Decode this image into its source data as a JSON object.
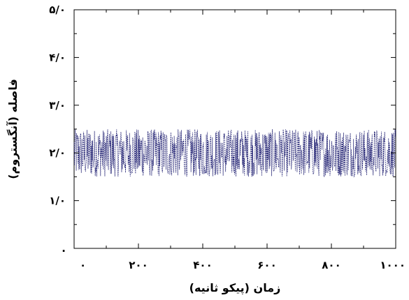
{
  "chart_data": {
    "type": "line",
    "title": "",
    "xlabel": "زمان (پیکو ثانیه)",
    "ylabel": "فاصله (آنگستروم)",
    "xlim": [
      0,
      1000
    ],
    "ylim": [
      0,
      5
    ],
    "x_ticks": [
      0,
      200,
      400,
      600,
      800,
      1000
    ],
    "x_tick_labels": [
      "۰",
      "۲۰۰",
      "۴۰۰",
      "۶۰۰",
      "۸۰۰",
      "۱۰۰۰"
    ],
    "y_ticks": [
      0,
      1,
      2,
      3,
      4,
      5
    ],
    "y_tick_labels": [
      ".",
      "۱/۰",
      "۲/۰",
      "۳/۰",
      "۴/۰",
      "۵/۰"
    ],
    "grid": false,
    "series": [
      {
        "color": "#1a1a6e",
        "mean": 2.0,
        "min": 1.5,
        "max": 2.5,
        "x_range": [
          0,
          1000
        ]
      }
    ]
  }
}
